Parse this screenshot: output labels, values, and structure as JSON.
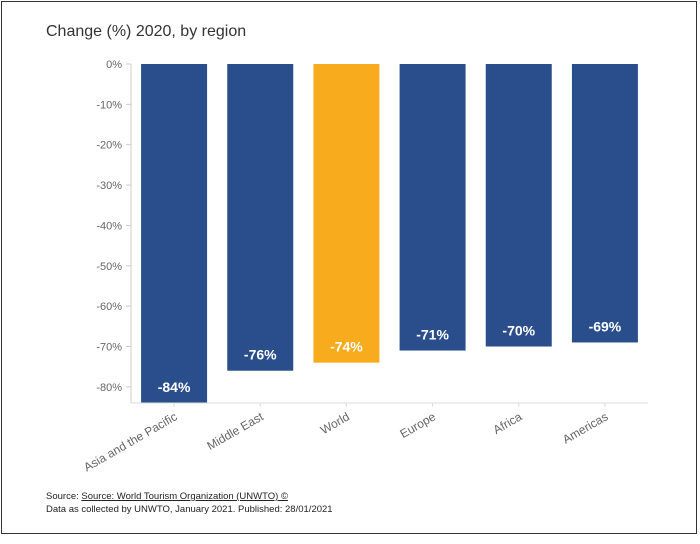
{
  "chart_data": {
    "type": "bar",
    "title": "Change (%) 2020, by region",
    "xlabel": "",
    "ylabel": "",
    "categories": [
      "Asia and the Pacific",
      "Middle East",
      "World",
      "Europe",
      "Africa",
      "Americas"
    ],
    "values": [
      -84,
      -76,
      -74,
      -71,
      -70,
      -69
    ],
    "data_labels": [
      "-84%",
      "-76%",
      "-74%",
      "-71%",
      "-70%",
      "-69%"
    ],
    "highlight_category": "World",
    "ylim": [
      -84,
      0
    ],
    "yticks": [
      0,
      -10,
      -20,
      -30,
      -40,
      -50,
      -60,
      -70,
      -80
    ],
    "ytick_labels": [
      "0%",
      "-10%",
      "-20%",
      "-30%",
      "-40%",
      "-50%",
      "-60%",
      "-70%",
      "-80%"
    ],
    "grid": false,
    "colors": {
      "bar": "#2a4d8c",
      "highlight": "#f8ab1c"
    }
  },
  "footer": {
    "source_prefix": "Source: ",
    "source_link": "Source: World Tourism Organization (UNWTO) ©",
    "note": "Data as collected by UNWTO, January 2021. Published: 28/01/2021"
  }
}
